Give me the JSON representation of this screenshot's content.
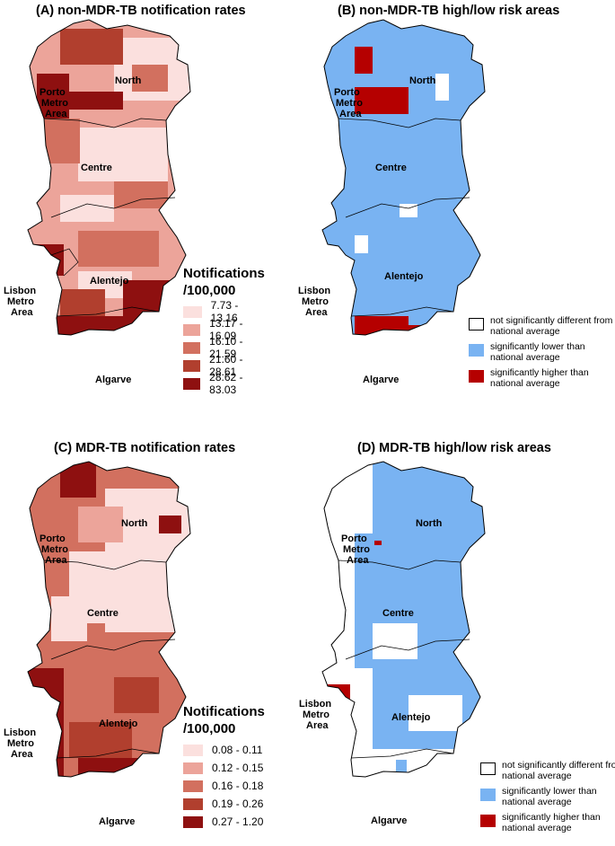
{
  "panels": {
    "a": {
      "title": "(A) non-MDR-TB notification rates"
    },
    "b": {
      "title": "(B) non-MDR-TB high/low risk areas"
    },
    "c": {
      "title": "(C) MDR-TB notification rates"
    },
    "d": {
      "title": "(D) MDR-TB high/low risk areas"
    }
  },
  "regions": {
    "north": "North",
    "porto_line1": "Porto",
    "porto_line2": "Metro",
    "porto_line3": "Area",
    "centre": "Centre",
    "alentejo": "Alentejo",
    "lisbon_line1": "Lisbon",
    "lisbon_line2": "Metro",
    "lisbon_line3": "Area",
    "algarve": "Algarve"
  },
  "legend_rates_nonmdr": {
    "title_line1": "Notifications",
    "title_line2": "/100,000",
    "classes": [
      "7.73 - 13.16",
      "13.17 - 16.09",
      "16.10 - 21.59",
      "21.60 - 28.61",
      "28.62 - 83.03"
    ]
  },
  "legend_rates_mdr": {
    "title_line1": "Notifications",
    "title_line2": "/100,000",
    "classes": [
      "0.08 - 0.11",
      "0.12 - 0.15",
      "0.16 - 0.18",
      "0.19 - 0.26",
      "0.27 - 1.20"
    ]
  },
  "legend_risk": {
    "not_significant": "not significantly different from national average",
    "lower": "significantly lower than national average",
    "higher": "significantly higher than national average"
  },
  "colors": {
    "rate_classes": [
      "#fbe0de",
      "#eca49a",
      "#d2705f",
      "#b13f2e",
      "#8e1010"
    ],
    "risk_lower": "#79b3f2",
    "risk_higher": "#b50000",
    "risk_not_significant": "#ffffff",
    "border": "#000000"
  }
}
